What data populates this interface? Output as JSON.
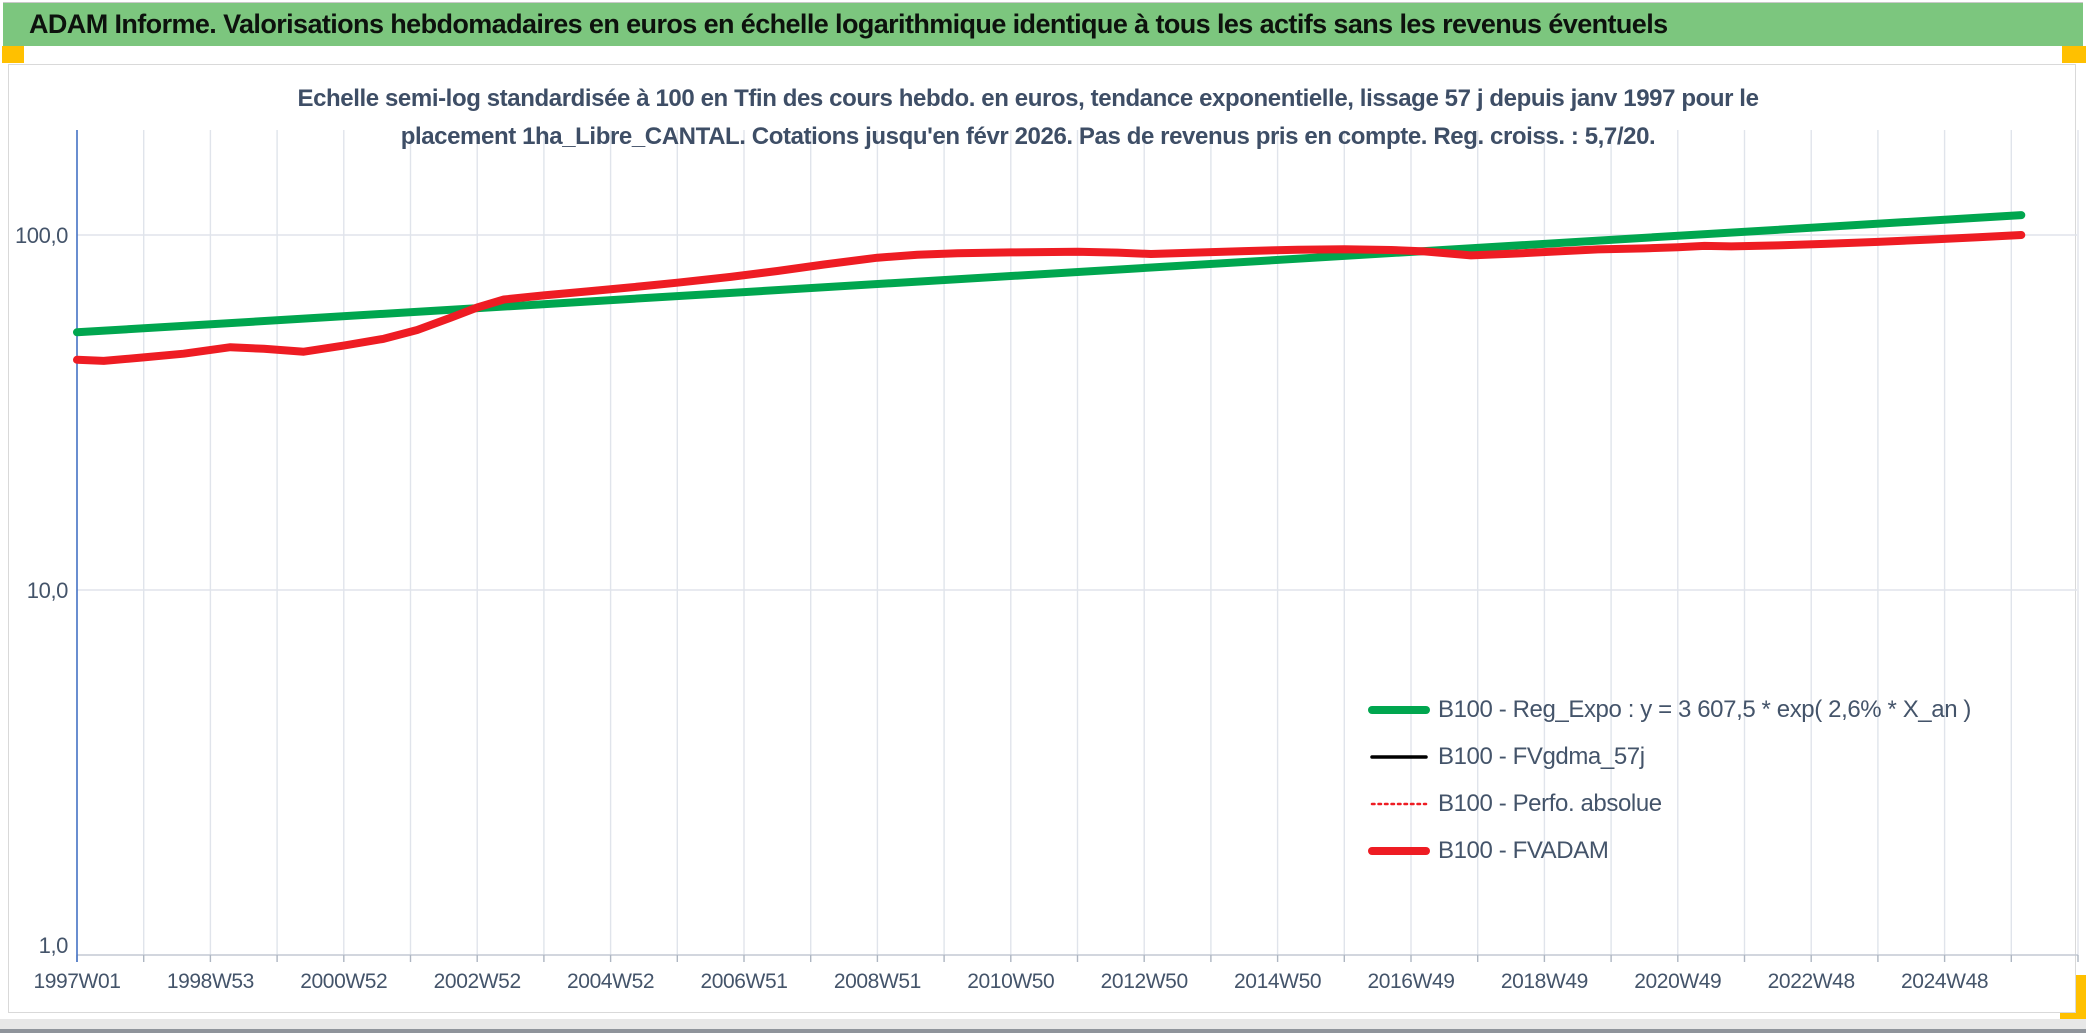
{
  "header": {
    "title": "ADAM Informe. Valorisations hebdomadaires en euros en échelle logarithmique identique à tous les actifs sans les revenus éventuels",
    "bar_color": "#7cc67e",
    "accent_color": "#ffc000"
  },
  "subtitle": {
    "line1": "Echelle semi-log standardisée à 100 en Tfin des cours hebdo. en euros, tendance exponentielle, lissage 57 j depuis janv 1997 pour le",
    "line2": "placement 1ha_Libre_CANTAL. Cotations jusqu'en févr 2026. Pas de revenus pris en compte. Reg. croiss. : 5,7/20."
  },
  "chart_data": {
    "type": "line",
    "y_axis": {
      "scale": "log",
      "tick_labels": [
        "100,0",
        "10,0",
        "1,0"
      ],
      "tick_values": [
        100,
        10,
        1
      ],
      "axis_color": "#4472c4",
      "label_color": "#44546a"
    },
    "x_axis": {
      "labels": [
        "1997W01",
        "1998W53",
        "2000W52",
        "2002W52",
        "2004W52",
        "2006W51",
        "2008W51",
        "2010W50",
        "2012W50",
        "2014W50",
        "2016W49",
        "2018W49",
        "2020W49",
        "2022W48",
        "2024W48"
      ],
      "label_years": [
        1997,
        1999,
        2001,
        2003,
        2005,
        2007,
        2009,
        2011,
        2013,
        2015,
        2017,
        2019,
        2021,
        2023,
        2025
      ],
      "gridline_every_years": 1,
      "start_year": 1997,
      "end_year": 2027,
      "label_color": "#44546a",
      "gridline_color": "#e0e4eb"
    },
    "series": [
      {
        "name": "B100 - Reg_Expo : y = 3 607,5 * exp( 2,6% *  X_an )",
        "color": "#00a64f",
        "width": 8,
        "dash": "",
        "points": [
          [
            1997.0,
            53.2
          ],
          [
            2026.15,
            113.8
          ]
        ]
      },
      {
        "name": "B100 - FVgdma_57j",
        "color": "#000000",
        "width": 3.5,
        "dash": "",
        "points": [
          [
            1997.0,
            44.5
          ],
          [
            1997.4,
            44.2
          ],
          [
            1998.0,
            45.2
          ],
          [
            1998.6,
            46.3
          ],
          [
            1999.3,
            48.0
          ],
          [
            1999.8,
            47.5
          ],
          [
            2000.4,
            46.5
          ],
          [
            2001.0,
            48.6
          ],
          [
            2001.6,
            51.0
          ],
          [
            2002.1,
            54.0
          ],
          [
            2002.6,
            58.5
          ],
          [
            2003.0,
            62.5
          ],
          [
            2003.4,
            65.8
          ],
          [
            2004.0,
            67.6
          ],
          [
            2004.7,
            69.5
          ],
          [
            2005.3,
            71.2
          ],
          [
            2006.0,
            73.4
          ],
          [
            2006.8,
            76.2
          ],
          [
            2007.5,
            79.2
          ],
          [
            2008.2,
            82.6
          ],
          [
            2009.0,
            86.3
          ],
          [
            2009.6,
            88.0
          ],
          [
            2010.2,
            88.8
          ],
          [
            2011.0,
            89.3
          ],
          [
            2012.0,
            89.7
          ],
          [
            2012.6,
            89.2
          ],
          [
            2013.1,
            88.4
          ],
          [
            2013.7,
            89.1
          ],
          [
            2014.5,
            90.1
          ],
          [
            2015.3,
            90.9
          ],
          [
            2016.0,
            91.2
          ],
          [
            2016.7,
            90.7
          ],
          [
            2017.2,
            89.9
          ],
          [
            2017.9,
            87.6
          ],
          [
            2018.5,
            88.5
          ],
          [
            2019.2,
            89.9
          ],
          [
            2019.8,
            91.1
          ],
          [
            2020.5,
            91.7
          ],
          [
            2021.0,
            92.4
          ],
          [
            2021.4,
            93.2
          ],
          [
            2021.8,
            92.9
          ],
          [
            2022.5,
            93.5
          ],
          [
            2023.2,
            94.4
          ],
          [
            2024.0,
            95.6
          ],
          [
            2024.8,
            97.1
          ],
          [
            2025.5,
            98.6
          ],
          [
            2026.15,
            100.0
          ]
        ]
      },
      {
        "name": "B100 - Perfo. absolue",
        "color": "#ee1c23",
        "width": 2.5,
        "dash": "2.5 4",
        "points": [
          [
            1997.0,
            44.5
          ],
          [
            1997.4,
            44.2
          ],
          [
            1998.0,
            45.2
          ],
          [
            1998.6,
            46.3
          ],
          [
            1999.3,
            48.3
          ],
          [
            1999.8,
            47.8
          ],
          [
            2000.4,
            46.9
          ],
          [
            2001.0,
            48.8
          ],
          [
            2001.6,
            51.0
          ],
          [
            2002.1,
            54.0
          ],
          [
            2002.6,
            58.5
          ],
          [
            2003.0,
            62.5
          ],
          [
            2003.4,
            65.8
          ],
          [
            2004.0,
            67.6
          ],
          [
            2004.7,
            69.5
          ],
          [
            2005.3,
            71.2
          ],
          [
            2006.0,
            73.4
          ],
          [
            2006.8,
            76.2
          ],
          [
            2007.5,
            79.2
          ],
          [
            2008.2,
            82.6
          ],
          [
            2009.0,
            86.3
          ],
          [
            2009.6,
            88.0
          ],
          [
            2010.2,
            88.8
          ],
          [
            2011.0,
            89.3
          ],
          [
            2012.0,
            89.7
          ],
          [
            2012.6,
            89.2
          ],
          [
            2013.1,
            88.4
          ],
          [
            2013.7,
            89.1
          ],
          [
            2014.5,
            90.1
          ],
          [
            2015.3,
            90.9
          ],
          [
            2016.0,
            91.2
          ],
          [
            2016.7,
            90.7
          ],
          [
            2017.2,
            89.9
          ],
          [
            2017.9,
            87.6
          ],
          [
            2018.5,
            88.5
          ],
          [
            2019.2,
            89.9
          ],
          [
            2019.8,
            91.1
          ],
          [
            2020.5,
            91.7
          ],
          [
            2021.0,
            92.4
          ],
          [
            2021.4,
            93.2
          ],
          [
            2021.8,
            92.9
          ],
          [
            2022.5,
            93.5
          ],
          [
            2023.2,
            94.4
          ],
          [
            2024.0,
            95.6
          ],
          [
            2024.8,
            97.1
          ],
          [
            2025.5,
            98.6
          ],
          [
            2026.15,
            100.0
          ]
        ]
      },
      {
        "name": "B100 - FVADAM",
        "color": "#ee1c23",
        "width": 8,
        "dash": "",
        "points": [
          [
            1997.0,
            44.5
          ],
          [
            1997.4,
            44.2
          ],
          [
            1998.0,
            45.2
          ],
          [
            1998.6,
            46.3
          ],
          [
            1999.3,
            48.3
          ],
          [
            1999.8,
            47.8
          ],
          [
            2000.4,
            46.9
          ],
          [
            2001.0,
            48.8
          ],
          [
            2001.6,
            51.0
          ],
          [
            2002.1,
            54.0
          ],
          [
            2002.6,
            58.5
          ],
          [
            2003.0,
            62.5
          ],
          [
            2003.4,
            65.8
          ],
          [
            2004.0,
            67.6
          ],
          [
            2004.7,
            69.5
          ],
          [
            2005.3,
            71.2
          ],
          [
            2006.0,
            73.4
          ],
          [
            2006.8,
            76.2
          ],
          [
            2007.5,
            79.2
          ],
          [
            2008.2,
            82.6
          ],
          [
            2009.0,
            86.3
          ],
          [
            2009.6,
            88.0
          ],
          [
            2010.2,
            88.8
          ],
          [
            2011.0,
            89.3
          ],
          [
            2012.0,
            89.7
          ],
          [
            2012.6,
            89.2
          ],
          [
            2013.1,
            88.4
          ],
          [
            2013.7,
            89.1
          ],
          [
            2014.5,
            90.1
          ],
          [
            2015.3,
            90.9
          ],
          [
            2016.0,
            91.2
          ],
          [
            2016.7,
            90.7
          ],
          [
            2017.2,
            89.9
          ],
          [
            2017.9,
            87.6
          ],
          [
            2018.5,
            88.5
          ],
          [
            2019.2,
            89.9
          ],
          [
            2019.8,
            91.1
          ],
          [
            2020.5,
            91.7
          ],
          [
            2021.0,
            92.4
          ],
          [
            2021.4,
            93.2
          ],
          [
            2021.8,
            92.9
          ],
          [
            2022.5,
            93.5
          ],
          [
            2023.2,
            94.4
          ],
          [
            2024.0,
            95.6
          ],
          [
            2024.8,
            97.1
          ],
          [
            2025.5,
            98.6
          ],
          [
            2026.15,
            100.0
          ]
        ]
      }
    ],
    "legend": [
      {
        "label": "B100 - Reg_Expo : y = 3 607,5 * exp( 2,6% *  X_an )",
        "color": "#00a64f",
        "width": 8,
        "dash": ""
      },
      {
        "label": "B100 - FVgdma_57j",
        "color": "#000000",
        "width": 3.5,
        "dash": ""
      },
      {
        "label": "B100 - Perfo. absolue",
        "color": "#ee1c23",
        "width": 2.5,
        "dash": "2.5 4"
      },
      {
        "label": "B100 - FVADAM",
        "color": "#ee1c23",
        "width": 8,
        "dash": ""
      }
    ],
    "legend_position": "right-middle",
    "grid": true,
    "ylim_log": [
      1,
      200
    ]
  }
}
